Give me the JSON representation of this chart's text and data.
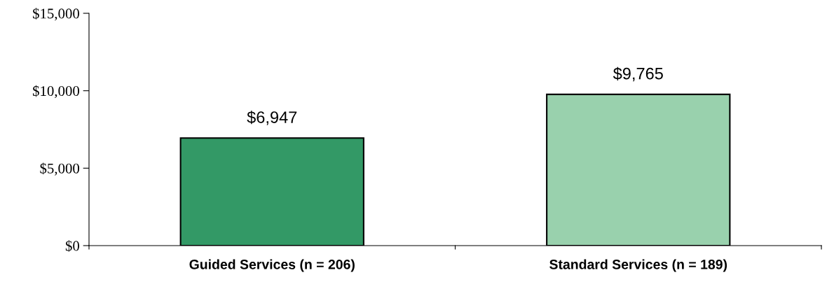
{
  "chart_data": {
    "type": "bar",
    "categories": [
      "Guided Services (n = 206)",
      "Standard Services (n = 189)"
    ],
    "values": [
      6947,
      9765
    ],
    "colors": [
      "#339966",
      "#99d1ad"
    ],
    "value_labels": [
      "$6,947",
      "$9,765"
    ],
    "ylim": [
      0,
      15000
    ],
    "yticks": [
      {
        "value": 0,
        "label": "$0"
      },
      {
        "value": 5000,
        "label": "$5,000"
      },
      {
        "value": 10000,
        "label": "$10,000"
      },
      {
        "value": 15000,
        "label": "$15,000"
      }
    ],
    "grid": false,
    "legend": false
  }
}
